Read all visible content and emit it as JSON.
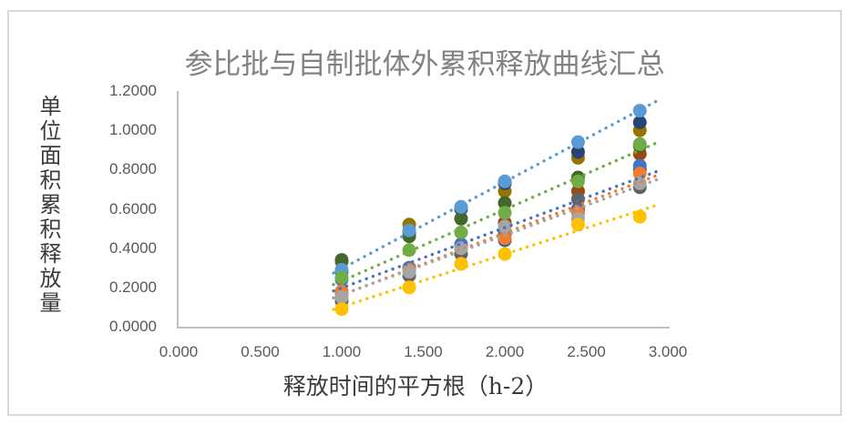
{
  "chart": {
    "title": "参比批与自制批体外累积释放曲线汇总",
    "y_axis_title": "单位面积累积释放量",
    "x_axis_title": "释放时间的平方根（h-2）",
    "colors": {
      "title_text": "#828282",
      "axis_title_text": "#3B3B3B",
      "tick_text": "#595959",
      "axis_line": "#BFBFBF",
      "frame_border": "#D9D9D9",
      "background": "#FFFFFF"
    }
  },
  "chart_data": {
    "type": "scatter",
    "title": "参比批与自制批体外累积释放曲线汇总",
    "xlabel": "释放时间的平方根（h-2）",
    "ylabel": "单位面积累积释放量",
    "xlim": [
      0,
      3
    ],
    "ylim": [
      0,
      1.2
    ],
    "x_tick_labels": [
      "0.000",
      "0.500",
      "1.000",
      "1.500",
      "2.000",
      "2.500",
      "3.000"
    ],
    "y_tick_labels": [
      "0.0000",
      "0.2000",
      "0.4000",
      "0.6000",
      "0.8000",
      "1.0000",
      "1.2000"
    ],
    "grid": false,
    "legend": "none",
    "marker_style": "filled-circle",
    "trendline_style": "dotted",
    "x": [
      1.0,
      1.414,
      1.732,
      2.0,
      2.449,
      2.828
    ],
    "series": [
      {
        "name": "series-dark-sky-blue",
        "color": "#255E91",
        "trendline": false,
        "values": [
          0.17,
          0.29,
          0.4,
          0.44,
          0.6,
          0.8
        ]
      },
      {
        "name": "series-brown",
        "color": "#9E480E",
        "trendline": false,
        "values": [
          0.18,
          0.3,
          0.41,
          0.53,
          0.69,
          0.88
        ]
      },
      {
        "name": "series-dark-gray",
        "color": "#636363",
        "trendline": false,
        "values": [
          0.13,
          0.26,
          0.37,
          0.47,
          0.65,
          0.71
        ]
      },
      {
        "name": "series-olive",
        "color": "#997300",
        "trendline": false,
        "values": [
          0.33,
          0.52,
          0.6,
          0.69,
          0.86,
          1.0
        ]
      },
      {
        "name": "series-navy",
        "color": "#264478",
        "trendline": false,
        "values": [
          0.28,
          0.48,
          0.6,
          0.73,
          0.89,
          1.04
        ]
      },
      {
        "name": "series-dark-green",
        "color": "#43682B",
        "trendline": false,
        "values": [
          0.34,
          0.46,
          0.55,
          0.63,
          0.76,
          0.92
        ]
      },
      {
        "name": "series-blue",
        "color": "#4472C4",
        "trendline": true,
        "values": [
          0.24,
          0.3,
          0.42,
          0.48,
          0.59,
          0.82
        ]
      },
      {
        "name": "series-orange",
        "color": "#ED7D31",
        "trendline": true,
        "values": [
          0.18,
          0.29,
          0.4,
          0.45,
          0.58,
          0.78
        ]
      },
      {
        "name": "series-gray",
        "color": "#A5A5A5",
        "trendline": true,
        "values": [
          0.15,
          0.28,
          0.4,
          0.51,
          0.55,
          0.73
        ]
      },
      {
        "name": "series-gold",
        "color": "#FFC000",
        "trendline": true,
        "values": [
          0.09,
          0.2,
          0.32,
          0.37,
          0.52,
          0.56
        ]
      },
      {
        "name": "series-light-blue",
        "color": "#5B9BD5",
        "trendline": true,
        "values": [
          0.29,
          0.49,
          0.61,
          0.74,
          0.94,
          1.1
        ]
      },
      {
        "name": "series-green",
        "color": "#70AD47",
        "trendline": true,
        "values": [
          0.25,
          0.39,
          0.48,
          0.58,
          0.74,
          0.93
        ]
      }
    ]
  }
}
